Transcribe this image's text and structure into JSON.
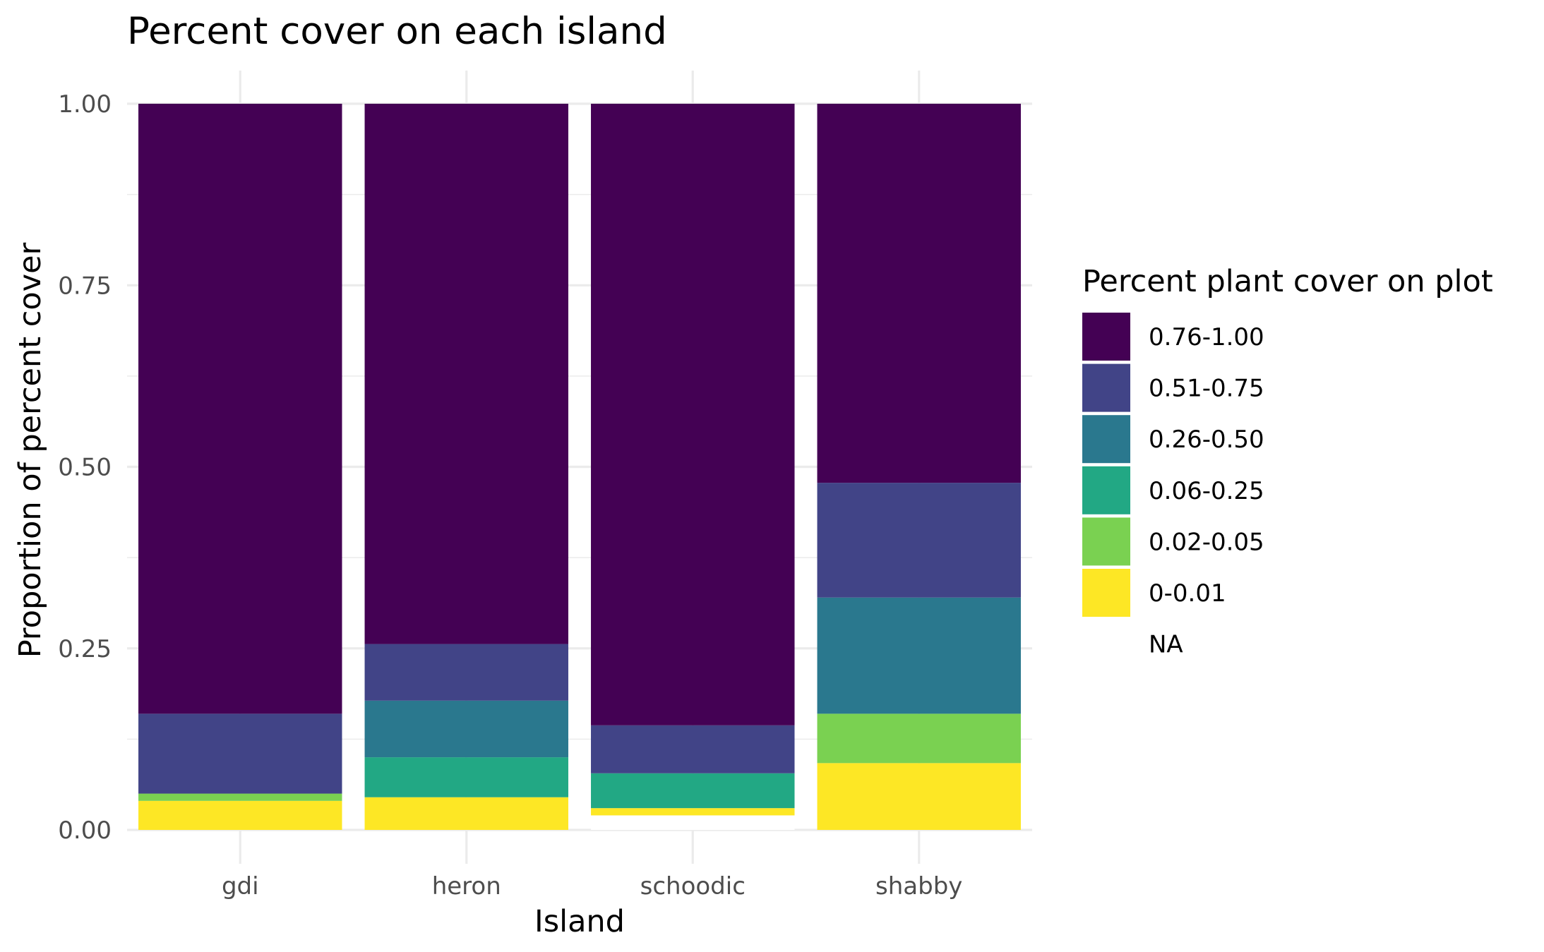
{
  "chart_data": {
    "type": "bar",
    "stacked": true,
    "title": "Percent cover on each island",
    "xlabel": "Island",
    "ylabel": "Proportion of percent cover",
    "categories": [
      "gdi",
      "heron",
      "schoodic",
      "shabby"
    ],
    "ylim": [
      0,
      1
    ],
    "yticks": [
      0,
      0.25,
      0.5,
      0.75,
      1
    ],
    "ytick_labels": [
      "0.00",
      "0.25",
      "0.50",
      "0.75",
      "1.00"
    ],
    "grid": true,
    "legend": {
      "title": "Percent plant cover on plot",
      "position": "right",
      "entries": [
        "0.76-1.00",
        "0.51-0.75",
        "0.26-0.50",
        "0.06-0.25",
        "0.02-0.05",
        "0-0.01",
        "NA"
      ]
    },
    "series": [
      {
        "name": "NA",
        "color": "#ffffff",
        "values": [
          0.0,
          0.0,
          0.02,
          0.0
        ]
      },
      {
        "name": "0-0.01",
        "color": "#fde725",
        "values": [
          0.04,
          0.045,
          0.01,
          0.092
        ]
      },
      {
        "name": "0.02-0.05",
        "color": "#7ad151",
        "values": [
          0.01,
          0.0,
          0.0,
          0.068
        ]
      },
      {
        "name": "0.06-0.25",
        "color": "#22a884",
        "values": [
          0.0,
          0.055,
          0.048,
          0.0
        ]
      },
      {
        "name": "0.26-0.50",
        "color": "#2a788e",
        "values": [
          0.0,
          0.078,
          0.0,
          0.16
        ]
      },
      {
        "name": "0.51-0.75",
        "color": "#414487",
        "values": [
          0.11,
          0.078,
          0.066,
          0.158
        ]
      },
      {
        "name": "0.76-1.00",
        "color": "#440154",
        "values": [
          0.84,
          0.744,
          0.856,
          0.522
        ]
      }
    ]
  }
}
